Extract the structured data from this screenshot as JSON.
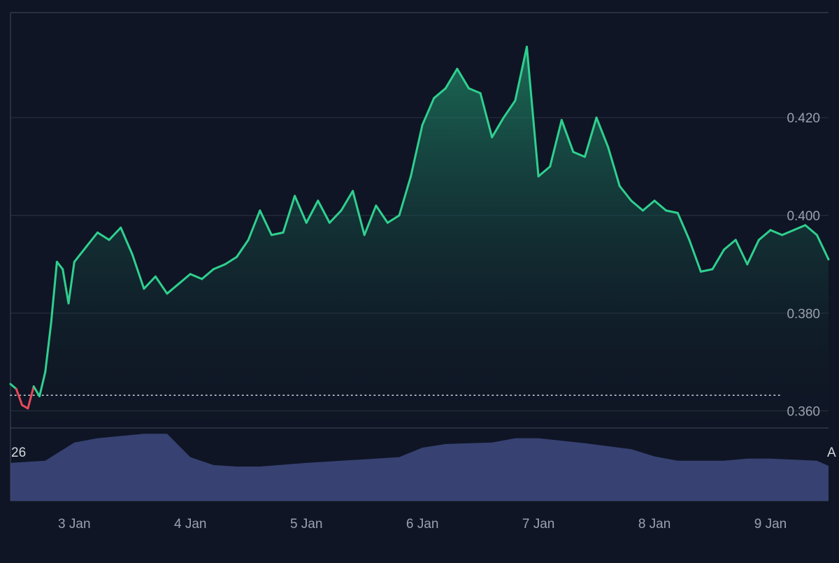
{
  "colors": {
    "background": "#0f1524",
    "grid": "#2b3344",
    "frame": "#3a4254",
    "line_up": "#2fd08f",
    "line_down": "#e8495b",
    "area_top": "#1f8a68",
    "baseline": "#c9cdd6",
    "volume": "#3a4578",
    "tick_text": "#9aa0ad"
  },
  "chart_data": [
    {
      "type": "line",
      "title": "",
      "xlabel": "",
      "ylabel": "",
      "x_ticks": [
        "3 Jan",
        "4 Jan",
        "5 Jan",
        "6 Jan",
        "7 Jan",
        "8 Jan",
        "9 Jan"
      ],
      "y_ticks": [
        "0.420",
        "0.400",
        "0.380",
        "0.360"
      ],
      "ylim": [
        0.3565,
        0.4415
      ],
      "x_range_days": [
        2.45,
        9.5
      ],
      "baseline_value": 0.3632,
      "grid": true,
      "series": [
        {
          "x": [
            "2 Jan 10:48",
            "2 Jan 12:00",
            "2 Jan 13:12",
            "2 Jan 14:24",
            "2 Jan 15:36",
            "2 Jan 16:48",
            "2 Jan 18:00",
            "2 Jan 19:12",
            "2 Jan 20:24",
            "2 Jan 21:36",
            "2 Jan 22:48",
            "3 Jan 00:00",
            "3 Jan 02:24",
            "3 Jan 04:48",
            "3 Jan 07:12",
            "3 Jan 09:36",
            "3 Jan 12:00",
            "3 Jan 14:24",
            "3 Jan 16:48",
            "3 Jan 19:12",
            "3 Jan 21:36",
            "4 Jan 00:00",
            "4 Jan 02:24",
            "4 Jan 04:48",
            "4 Jan 07:12",
            "4 Jan 09:36",
            "4 Jan 12:00",
            "4 Jan 14:24",
            "4 Jan 16:48",
            "4 Jan 19:12",
            "4 Jan 21:36",
            "5 Jan 00:00",
            "5 Jan 02:24",
            "5 Jan 04:48",
            "5 Jan 07:12",
            "5 Jan 09:36",
            "5 Jan 12:00",
            "5 Jan 14:24",
            "5 Jan 16:48",
            "5 Jan 19:12",
            "5 Jan 21:36",
            "6 Jan 00:00",
            "6 Jan 02:24",
            "6 Jan 04:48",
            "6 Jan 07:12",
            "6 Jan 09:36",
            "6 Jan 12:00",
            "6 Jan 14:24",
            "6 Jan 15:36",
            "6 Jan 16:48",
            "6 Jan 19:12",
            "6 Jan 21:36",
            "7 Jan 00:00",
            "7 Jan 02:24",
            "7 Jan 04:48",
            "7 Jan 07:12",
            "7 Jan 09:36",
            "7 Jan 12:00",
            "7 Jan 14:24",
            "7 Jan 16:48",
            "7 Jan 19:12",
            "7 Jan 21:36",
            "8 Jan 00:00",
            "8 Jan 02:24",
            "8 Jan 04:48",
            "8 Jan 07:12",
            "8 Jan 09:36",
            "8 Jan 12:00",
            "8 Jan 14:24",
            "8 Jan 16:48",
            "8 Jan 19:12",
            "8 Jan 21:36",
            "9 Jan 00:00",
            "9 Jan 02:24",
            "9 Jan 04:48",
            "9 Jan 07:12",
            "9 Jan 09:36",
            "9 Jan 12:00"
          ],
          "values": [
            0.3655,
            0.3645,
            0.3612,
            0.3605,
            0.365,
            0.363,
            0.368,
            0.378,
            0.3905,
            0.389,
            0.382,
            0.3905,
            0.3935,
            0.3965,
            0.395,
            0.3975,
            0.392,
            0.385,
            0.3875,
            0.384,
            0.386,
            0.388,
            0.387,
            0.389,
            0.39,
            0.3915,
            0.395,
            0.401,
            0.396,
            0.3965,
            0.404,
            0.3985,
            0.403,
            0.3985,
            0.401,
            0.405,
            0.396,
            0.402,
            0.3985,
            0.4,
            0.408,
            0.4185,
            0.424,
            0.426,
            0.43,
            0.426,
            0.425,
            0.416,
            0.418,
            0.42,
            0.4235,
            0.4345,
            0.408,
            0.41,
            0.4195,
            0.413,
            0.412,
            0.42,
            0.414,
            0.406,
            0.403,
            0.401,
            0.403,
            0.401,
            0.4005,
            0.395,
            0.3885,
            0.389,
            0.393,
            0.395,
            0.39,
            0.395,
            0.397,
            0.396,
            0.397,
            0.398,
            0.396,
            0.391
          ]
        }
      ]
    },
    {
      "type": "area",
      "title": "",
      "y_axis_label_left": "26",
      "y_axis_label_right": "A",
      "series": [
        {
          "x": [
            "2 Jan 10:48",
            "2 Jan 18:00",
            "3 Jan 00:00",
            "3 Jan 04:48",
            "3 Jan 09:36",
            "3 Jan 14:24",
            "3 Jan 19:12",
            "4 Jan 00:00",
            "4 Jan 04:48",
            "4 Jan 09:36",
            "4 Jan 14:24",
            "5 Jan 00:00",
            "5 Jan 09:36",
            "5 Jan 19:12",
            "6 Jan 00:00",
            "6 Jan 04:48",
            "6 Jan 09:36",
            "6 Jan 14:24",
            "6 Jan 19:12",
            "7 Jan 00:00",
            "7 Jan 09:36",
            "7 Jan 19:12",
            "8 Jan 00:00",
            "8 Jan 04:48",
            "8 Jan 09:36",
            "8 Jan 14:24",
            "8 Jan 19:12",
            "9 Jan 00:00",
            "9 Jan 09:36",
            "9 Jan 12:00"
          ],
          "values": [
            52,
            55,
            80,
            86,
            89,
            92,
            92,
            60,
            49,
            47,
            47,
            52,
            56,
            60,
            73,
            78,
            79,
            80,
            86,
            86,
            79,
            71,
            61,
            55,
            55,
            55,
            58,
            58,
            55,
            48
          ]
        }
      ]
    }
  ]
}
